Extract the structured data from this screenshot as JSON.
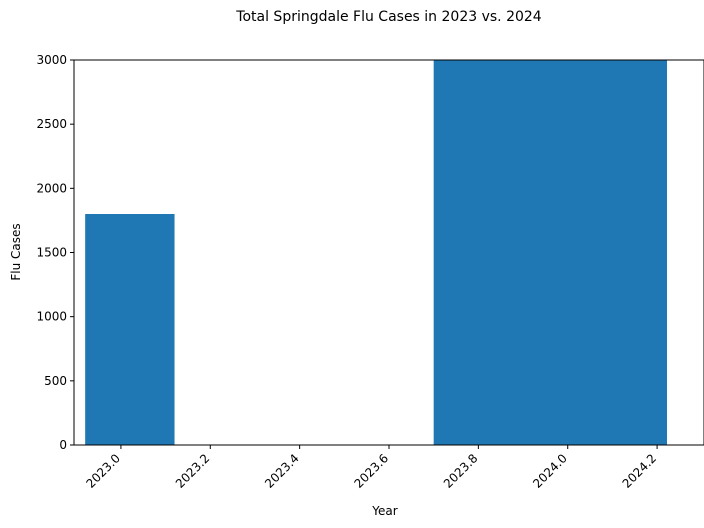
{
  "chart_data": {
    "type": "bar",
    "title": "Total Springdale Flu Cases in 2023 vs. 2024",
    "xlabel": "Year",
    "ylabel": "Flu Cases",
    "xlim": [
      2022.895,
      2024.305
    ],
    "ylim": [
      0,
      3000
    ],
    "xticks": [
      2023.0,
      2023.2,
      2023.4,
      2023.6,
      2023.8,
      2024.0,
      2024.2
    ],
    "xtick_labels": [
      "2023.0",
      "2023.2",
      "2023.4",
      "2023.6",
      "2023.8",
      "2024.0",
      "2024.2"
    ],
    "yticks": [
      0,
      500,
      1000,
      1500,
      2000,
      2500,
      3000
    ],
    "ytick_labels": [
      "0",
      "500",
      "1000",
      "1500",
      "2000",
      "2500",
      "3000"
    ],
    "xtick_rotation": 45,
    "grid": false,
    "bar_color": "#1f77b4",
    "bars": [
      {
        "x_start": 2022.92,
        "x_end": 2023.12,
        "value": 1800
      },
      {
        "x_start": 2023.7,
        "x_end": 2024.3,
        "value": 3000
      }
    ]
  }
}
